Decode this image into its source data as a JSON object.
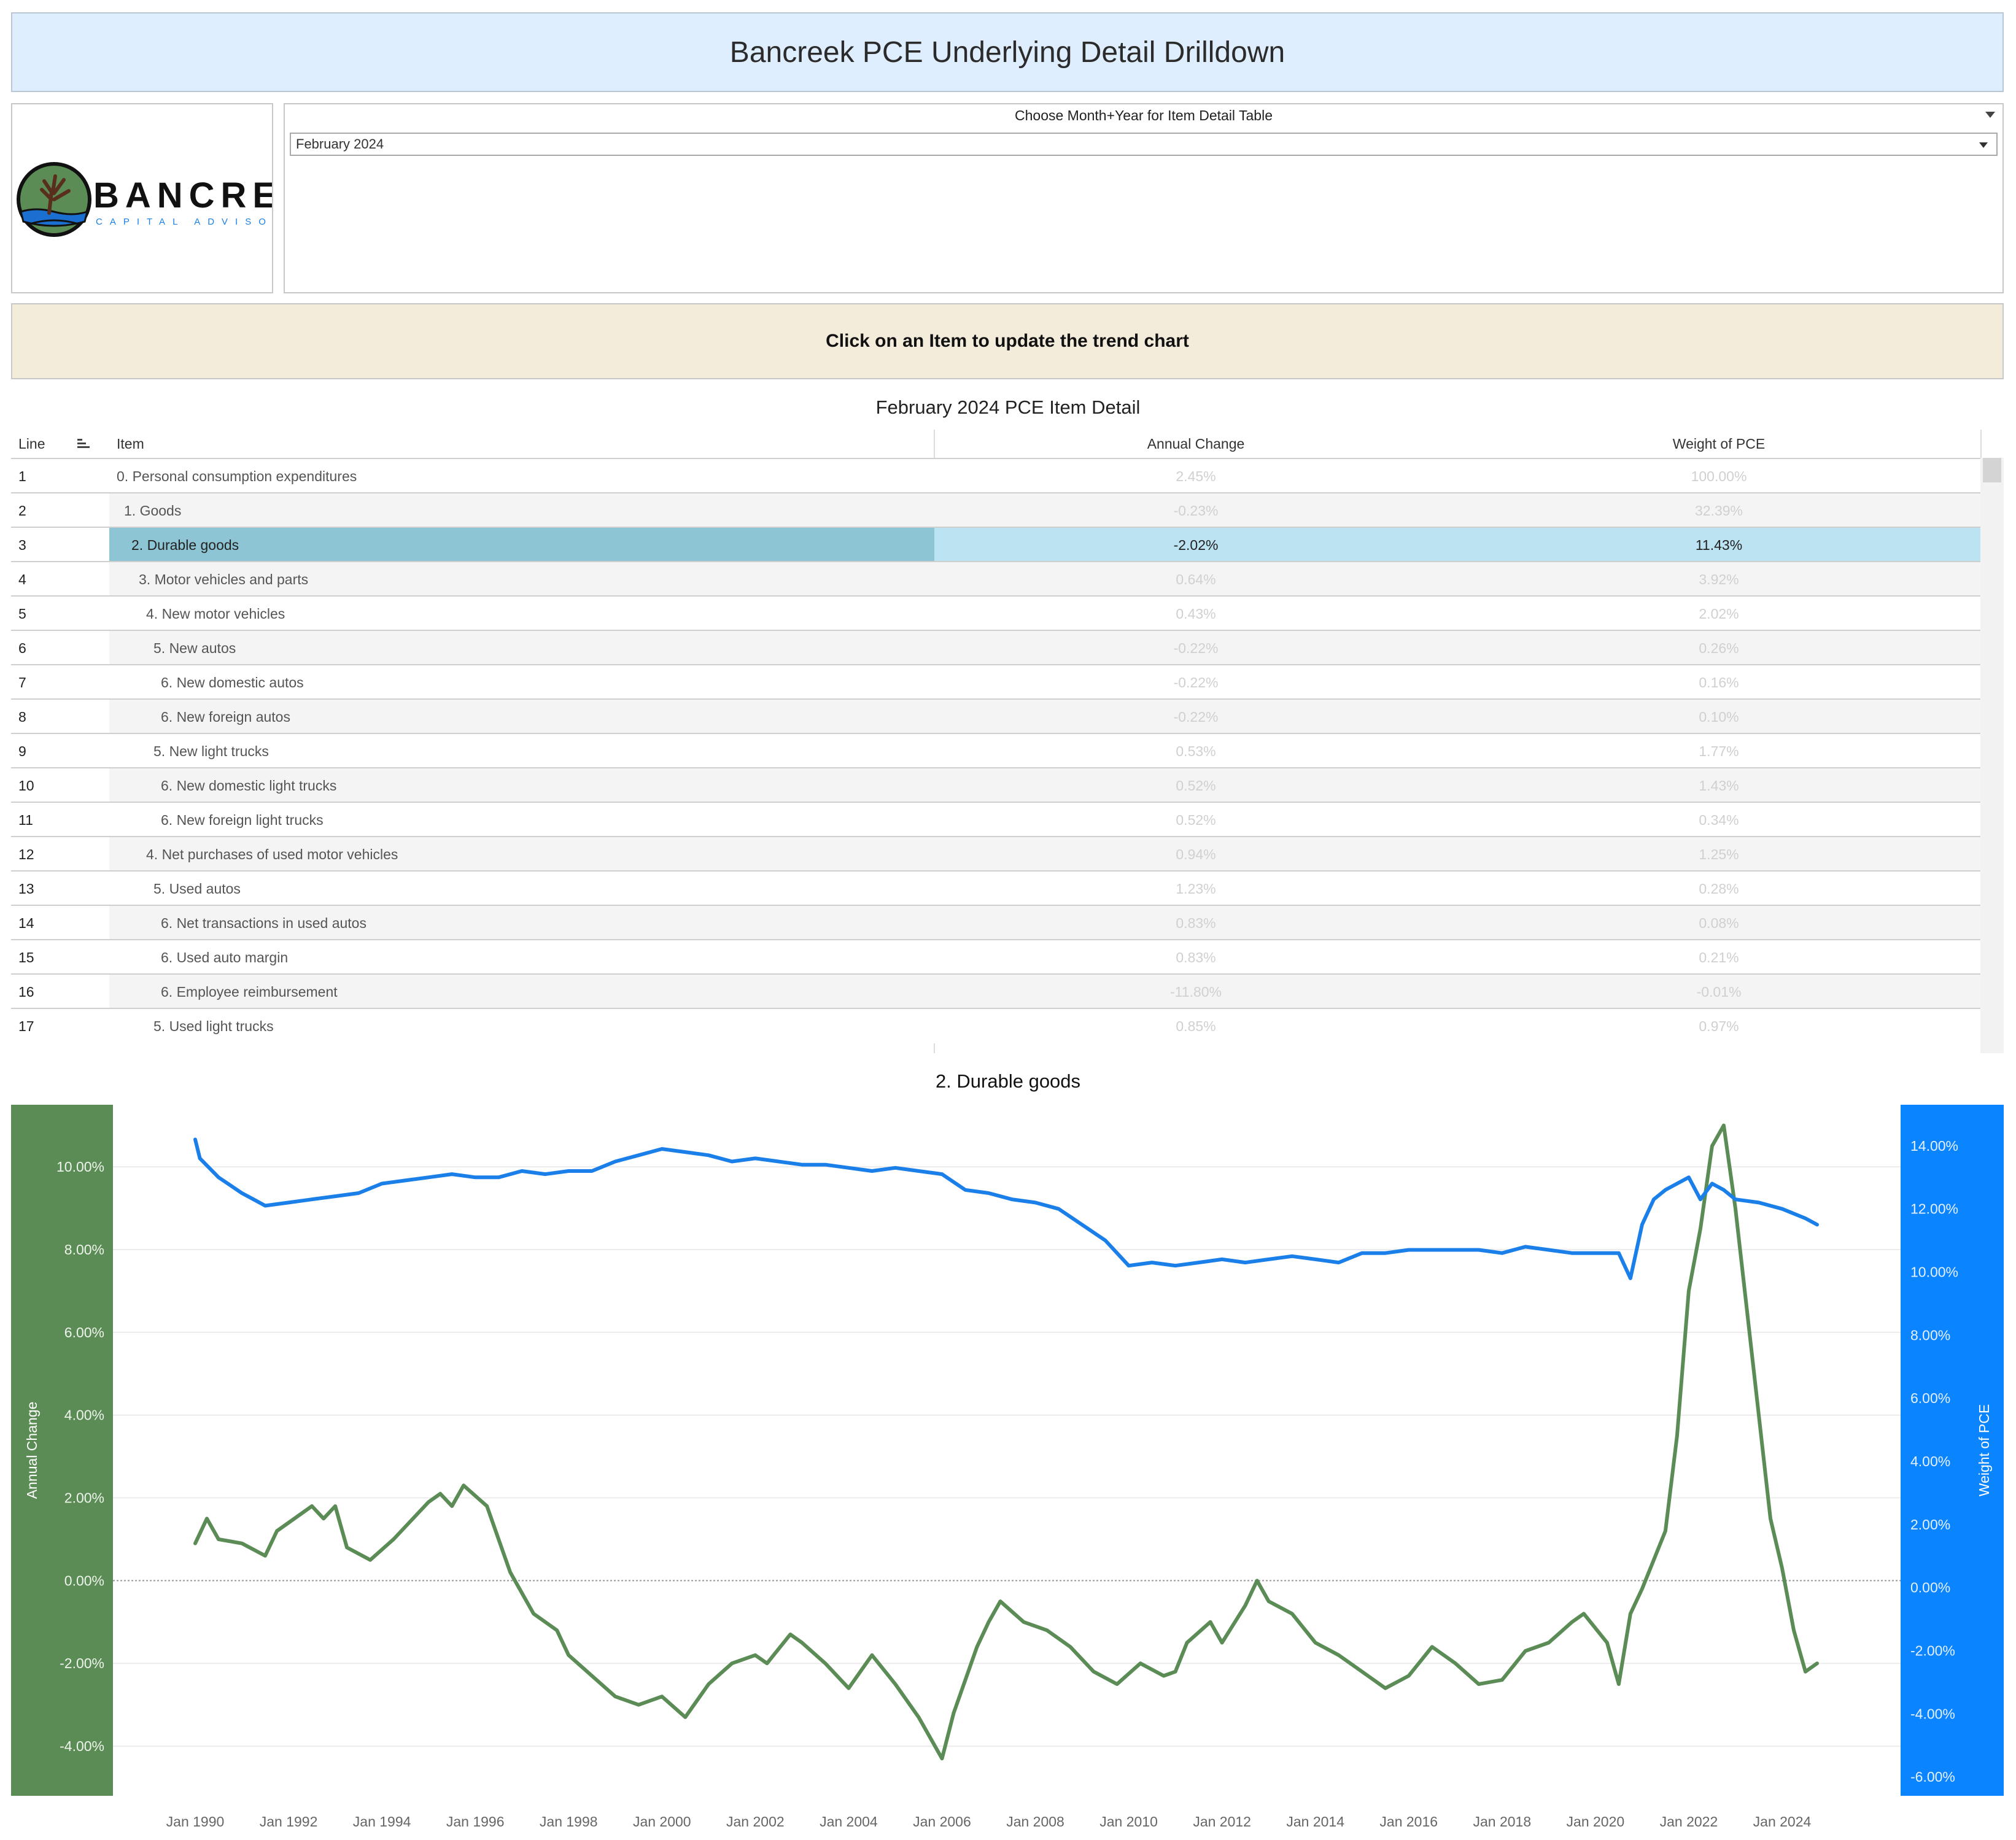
{
  "header": {
    "title": "Bancreek PCE Underlying Detail Drilldown"
  },
  "logo": {
    "name": "BANCREEK",
    "tagline": "CAPITAL ADVISORS"
  },
  "filter": {
    "label": "Choose Month+Year for Item Detail Table",
    "selected": "February 2024"
  },
  "banner": {
    "text": "Click on an Item to update the trend chart"
  },
  "table": {
    "title": "February 2024 PCE Item Detail",
    "columns": {
      "line": "Line",
      "item": "Item",
      "annual_change": "Annual Change",
      "weight": "Weight of PCE"
    },
    "selected_line": 3,
    "rows": [
      {
        "line": "1",
        "item": "0. Personal consumption expenditures",
        "level": 0,
        "annual_change": "2.45%",
        "weight": "100.00%"
      },
      {
        "line": "2",
        "item": "1. Goods",
        "level": 1,
        "annual_change": "-0.23%",
        "weight": "32.39%"
      },
      {
        "line": "3",
        "item": "2. Durable goods",
        "level": 2,
        "annual_change": "-2.02%",
        "weight": "11.43%"
      },
      {
        "line": "4",
        "item": "3. Motor vehicles and parts",
        "level": 3,
        "annual_change": "0.64%",
        "weight": "3.92%"
      },
      {
        "line": "5",
        "item": "4. New motor vehicles",
        "level": 4,
        "annual_change": "0.43%",
        "weight": "2.02%"
      },
      {
        "line": "6",
        "item": "5. New autos",
        "level": 5,
        "annual_change": "-0.22%",
        "weight": "0.26%"
      },
      {
        "line": "7",
        "item": "6. New domestic autos",
        "level": 6,
        "annual_change": "-0.22%",
        "weight": "0.16%"
      },
      {
        "line": "8",
        "item": "6. New foreign autos",
        "level": 6,
        "annual_change": "-0.22%",
        "weight": "0.10%"
      },
      {
        "line": "9",
        "item": "5. New light trucks",
        "level": 5,
        "annual_change": "0.53%",
        "weight": "1.77%"
      },
      {
        "line": "10",
        "item": "6. New domestic light trucks",
        "level": 6,
        "annual_change": "0.52%",
        "weight": "1.43%"
      },
      {
        "line": "11",
        "item": "6. New foreign light trucks",
        "level": 6,
        "annual_change": "0.52%",
        "weight": "0.34%"
      },
      {
        "line": "12",
        "item": "4. Net purchases of used motor vehicles",
        "level": 4,
        "annual_change": "0.94%",
        "weight": "1.25%"
      },
      {
        "line": "13",
        "item": "5. Used autos",
        "level": 5,
        "annual_change": "1.23%",
        "weight": "0.28%"
      },
      {
        "line": "14",
        "item": "6. Net transactions in used autos",
        "level": 6,
        "annual_change": "0.83%",
        "weight": "0.08%"
      },
      {
        "line": "15",
        "item": "6. Used auto margin",
        "level": 6,
        "annual_change": "0.83%",
        "weight": "0.21%"
      },
      {
        "line": "16",
        "item": "6. Employee reimbursement",
        "level": 6,
        "annual_change": "-11.80%",
        "weight": "-0.01%"
      },
      {
        "line": "17",
        "item": "5. Used light trucks",
        "level": 5,
        "annual_change": "0.85%",
        "weight": "0.97%"
      }
    ]
  },
  "colors": {
    "annual_change": "#5b8c56",
    "weight": "#1a7fe8",
    "left_axis_bg": "#5b8c56",
    "right_axis_bg": "#0a84ff",
    "selected_item_bg": "#8ec5d4",
    "selected_values_bg": "#bce3f1",
    "banner_bg": "#f4ecdb",
    "title_bg": "#dfeefe"
  },
  "chart_data": {
    "type": "line",
    "title": "2. Durable goods",
    "x_ticks": [
      "Jan 1990",
      "Jan 1992",
      "Jan 1994",
      "Jan 1996",
      "Jan 1998",
      "Jan 2000",
      "Jan 2002",
      "Jan 2004",
      "Jan 2006",
      "Jan 2008",
      "Jan 2010",
      "Jan 2012",
      "Jan 2014",
      "Jan 2016",
      "Jan 2018",
      "Jan 2020",
      "Jan 2022",
      "Jan 2024"
    ],
    "y_left": {
      "label": "Annual Change",
      "ticks": [
        "-4.00%",
        "-2.00%",
        "0.00%",
        "2.00%",
        "4.00%",
        "6.00%",
        "8.00%",
        "10.00%"
      ],
      "range": [
        -5.2,
        11.5
      ]
    },
    "y_right": {
      "label": "Weight of PCE",
      "ticks": [
        "-6.00%",
        "-4.00%",
        "-2.00%",
        "0.00%",
        "2.00%",
        "4.00%",
        "6.00%",
        "8.00%",
        "10.00%",
        "12.00%",
        "14.00%"
      ],
      "range": [
        -6.6,
        15.3
      ]
    },
    "grid": true,
    "series": [
      {
        "name": "Annual Change",
        "axis": "left",
        "color": "#5b8c56",
        "points": [
          [
            1990.0,
            0.9
          ],
          [
            1990.25,
            1.5
          ],
          [
            1990.5,
            1.0
          ],
          [
            1991.0,
            0.9
          ],
          [
            1991.5,
            0.6
          ],
          [
            1991.75,
            1.2
          ],
          [
            1992.25,
            1.6
          ],
          [
            1992.5,
            1.8
          ],
          [
            1992.75,
            1.5
          ],
          [
            1993.0,
            1.8
          ],
          [
            1993.25,
            0.8
          ],
          [
            1993.75,
            0.5
          ],
          [
            1994.25,
            1.0
          ],
          [
            1994.75,
            1.6
          ],
          [
            1995.0,
            1.9
          ],
          [
            1995.25,
            2.1
          ],
          [
            1995.5,
            1.8
          ],
          [
            1995.75,
            2.3
          ],
          [
            1996.25,
            1.8
          ],
          [
            1996.5,
            1.0
          ],
          [
            1996.75,
            0.2
          ],
          [
            1997.0,
            -0.3
          ],
          [
            1997.25,
            -0.8
          ],
          [
            1997.75,
            -1.2
          ],
          [
            1998.0,
            -1.8
          ],
          [
            1998.5,
            -2.3
          ],
          [
            1999.0,
            -2.8
          ],
          [
            1999.5,
            -3.0
          ],
          [
            2000.0,
            -2.8
          ],
          [
            2000.5,
            -3.3
          ],
          [
            2001.0,
            -2.5
          ],
          [
            2001.5,
            -2.0
          ],
          [
            2002.0,
            -1.8
          ],
          [
            2002.25,
            -2.0
          ],
          [
            2002.75,
            -1.3
          ],
          [
            2003.0,
            -1.5
          ],
          [
            2003.5,
            -2.0
          ],
          [
            2004.0,
            -2.6
          ],
          [
            2004.5,
            -1.8
          ],
          [
            2005.0,
            -2.5
          ],
          [
            2005.5,
            -3.3
          ],
          [
            2006.0,
            -4.3
          ],
          [
            2006.25,
            -3.2
          ],
          [
            2006.75,
            -1.6
          ],
          [
            2007.0,
            -1.0
          ],
          [
            2007.25,
            -0.5
          ],
          [
            2007.75,
            -1.0
          ],
          [
            2008.25,
            -1.2
          ],
          [
            2008.75,
            -1.6
          ],
          [
            2009.25,
            -2.2
          ],
          [
            2009.75,
            -2.5
          ],
          [
            2010.25,
            -2.0
          ],
          [
            2010.75,
            -2.3
          ],
          [
            2011.0,
            -2.2
          ],
          [
            2011.25,
            -1.5
          ],
          [
            2011.75,
            -1.0
          ],
          [
            2012.0,
            -1.5
          ],
          [
            2012.5,
            -0.6
          ],
          [
            2012.75,
            0.0
          ],
          [
            2013.0,
            -0.5
          ],
          [
            2013.5,
            -0.8
          ],
          [
            2014.0,
            -1.5
          ],
          [
            2014.5,
            -1.8
          ],
          [
            2015.0,
            -2.2
          ],
          [
            2015.5,
            -2.6
          ],
          [
            2016.0,
            -2.3
          ],
          [
            2016.5,
            -1.6
          ],
          [
            2017.0,
            -2.0
          ],
          [
            2017.5,
            -2.5
          ],
          [
            2018.0,
            -2.4
          ],
          [
            2018.5,
            -1.7
          ],
          [
            2019.0,
            -1.5
          ],
          [
            2019.5,
            -1.0
          ],
          [
            2019.75,
            -0.8
          ],
          [
            2020.25,
            -1.5
          ],
          [
            2020.5,
            -2.5
          ],
          [
            2020.75,
            -0.8
          ],
          [
            2021.0,
            -0.2
          ],
          [
            2021.25,
            0.5
          ],
          [
            2021.5,
            1.2
          ],
          [
            2021.75,
            3.5
          ],
          [
            2022.0,
            7.0
          ],
          [
            2022.25,
            8.5
          ],
          [
            2022.5,
            10.5
          ],
          [
            2022.75,
            11.0
          ],
          [
            2023.0,
            9.0
          ],
          [
            2023.25,
            6.5
          ],
          [
            2023.5,
            4.0
          ],
          [
            2023.75,
            1.5
          ],
          [
            2024.0,
            0.3
          ],
          [
            2024.25,
            -1.2
          ],
          [
            2024.5,
            -2.2
          ],
          [
            2024.75,
            -2.0
          ]
        ]
      },
      {
        "name": "Weight of PCE",
        "axis": "right",
        "color": "#1a7fe8",
        "points": [
          [
            1990.0,
            14.2
          ],
          [
            1990.1,
            13.6
          ],
          [
            1990.5,
            13.0
          ],
          [
            1991.0,
            12.5
          ],
          [
            1991.25,
            12.3
          ],
          [
            1991.5,
            12.1
          ],
          [
            1992.0,
            12.2
          ],
          [
            1992.5,
            12.3
          ],
          [
            1993.0,
            12.4
          ],
          [
            1993.5,
            12.5
          ],
          [
            1994.0,
            12.8
          ],
          [
            1994.5,
            12.9
          ],
          [
            1995.0,
            13.0
          ],
          [
            1995.5,
            13.1
          ],
          [
            1996.0,
            13.0
          ],
          [
            1996.5,
            13.0
          ],
          [
            1997.0,
            13.2
          ],
          [
            1997.5,
            13.1
          ],
          [
            1998.0,
            13.2
          ],
          [
            1998.5,
            13.2
          ],
          [
            1999.0,
            13.5
          ],
          [
            1999.5,
            13.7
          ],
          [
            2000.0,
            13.9
          ],
          [
            2000.5,
            13.8
          ],
          [
            2001.0,
            13.7
          ],
          [
            2001.5,
            13.5
          ],
          [
            2002.0,
            13.6
          ],
          [
            2002.5,
            13.5
          ],
          [
            2003.0,
            13.4
          ],
          [
            2003.5,
            13.4
          ],
          [
            2004.0,
            13.3
          ],
          [
            2004.5,
            13.2
          ],
          [
            2005.0,
            13.3
          ],
          [
            2005.5,
            13.2
          ],
          [
            2006.0,
            13.1
          ],
          [
            2006.5,
            12.6
          ],
          [
            2007.0,
            12.5
          ],
          [
            2007.5,
            12.3
          ],
          [
            2008.0,
            12.2
          ],
          [
            2008.5,
            12.0
          ],
          [
            2009.0,
            11.5
          ],
          [
            2009.5,
            11.0
          ],
          [
            2010.0,
            10.2
          ],
          [
            2010.5,
            10.3
          ],
          [
            2011.0,
            10.2
          ],
          [
            2011.5,
            10.3
          ],
          [
            2012.0,
            10.4
          ],
          [
            2012.5,
            10.3
          ],
          [
            2013.0,
            10.4
          ],
          [
            2013.5,
            10.5
          ],
          [
            2014.0,
            10.4
          ],
          [
            2014.5,
            10.3
          ],
          [
            2015.0,
            10.6
          ],
          [
            2015.5,
            10.6
          ],
          [
            2016.0,
            10.7
          ],
          [
            2016.5,
            10.7
          ],
          [
            2017.0,
            10.7
          ],
          [
            2017.5,
            10.7
          ],
          [
            2018.0,
            10.6
          ],
          [
            2018.5,
            10.8
          ],
          [
            2019.0,
            10.7
          ],
          [
            2019.5,
            10.6
          ],
          [
            2020.0,
            10.6
          ],
          [
            2020.5,
            10.6
          ],
          [
            2020.75,
            9.8
          ],
          [
            2021.0,
            11.5
          ],
          [
            2021.25,
            12.3
          ],
          [
            2021.5,
            12.6
          ],
          [
            2021.75,
            12.8
          ],
          [
            2022.0,
            13.0
          ],
          [
            2022.25,
            12.3
          ],
          [
            2022.5,
            12.8
          ],
          [
            2022.75,
            12.6
          ],
          [
            2023.0,
            12.3
          ],
          [
            2023.5,
            12.2
          ],
          [
            2024.0,
            12.0
          ],
          [
            2024.5,
            11.7
          ],
          [
            2024.75,
            11.5
          ]
        ]
      }
    ]
  }
}
